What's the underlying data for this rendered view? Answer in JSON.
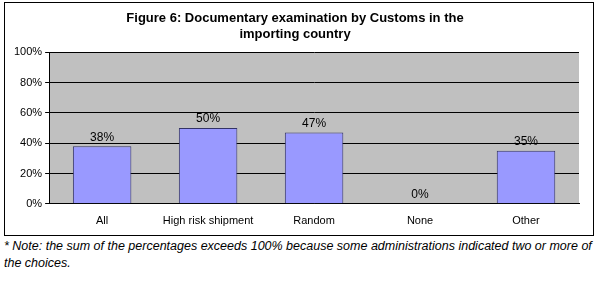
{
  "chart_data": {
    "type": "bar",
    "title": [
      "Figure 6: Documentary examination by Customs in the",
      "importing country"
    ],
    "categories": [
      "All",
      "High risk shipment",
      "Random",
      "None",
      "Other"
    ],
    "values": [
      38,
      50,
      47,
      0,
      35
    ],
    "value_labels": [
      "38%",
      "50%",
      "47%",
      "0%",
      "35%"
    ],
    "color": "#9999ff",
    "ylim": [
      0,
      100
    ],
    "yticks": [
      {
        "value": 0,
        "label": "0%"
      },
      {
        "value": 20,
        "label": "20%"
      },
      {
        "value": 40,
        "label": "40%"
      },
      {
        "value": 60,
        "label": "60%"
      },
      {
        "value": 80,
        "label": "80%"
      },
      {
        "value": 100,
        "label": "100%"
      }
    ],
    "grid": true,
    "data_labels": true,
    "note": "* Note: the sum of the percentages exceeds 100% because some administrations indicated two or more of the choices."
  }
}
